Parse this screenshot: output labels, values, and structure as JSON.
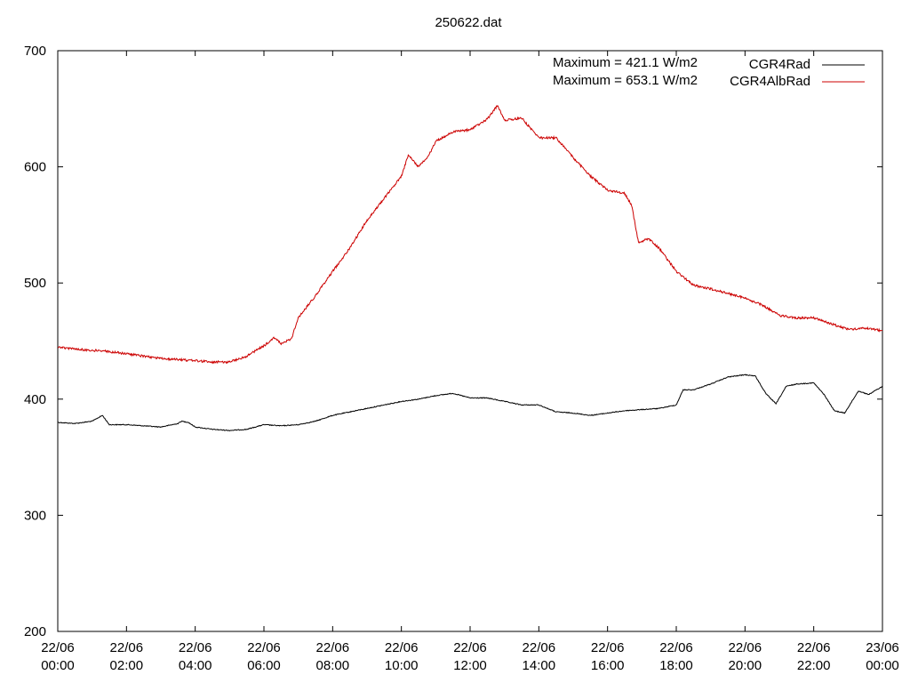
{
  "chart_data": {
    "type": "line",
    "title": "250622.dat",
    "xlabel": "",
    "ylabel": "",
    "ylim": [
      200,
      700
    ],
    "yticks": [
      200,
      300,
      400,
      500,
      600,
      700
    ],
    "xlim": [
      0,
      24
    ],
    "xticks": [
      {
        "x": 0,
        "label": [
          "22/06",
          "00:00"
        ]
      },
      {
        "x": 2,
        "label": [
          "22/06",
          "02:00"
        ]
      },
      {
        "x": 4,
        "label": [
          "22/06",
          "04:00"
        ]
      },
      {
        "x": 6,
        "label": [
          "22/06",
          "06:00"
        ]
      },
      {
        "x": 8,
        "label": [
          "22/06",
          "08:00"
        ]
      },
      {
        "x": 10,
        "label": [
          "22/06",
          "10:00"
        ]
      },
      {
        "x": 12,
        "label": [
          "22/06",
          "12:00"
        ]
      },
      {
        "x": 14,
        "label": [
          "22/06",
          "14:00"
        ]
      },
      {
        "x": 16,
        "label": [
          "22/06",
          "16:00"
        ]
      },
      {
        "x": 18,
        "label": [
          "22/06",
          "18:00"
        ]
      },
      {
        "x": 20,
        "label": [
          "22/06",
          "20:00"
        ]
      },
      {
        "x": 22,
        "label": [
          "22/06",
          "22:00"
        ]
      },
      {
        "x": 24,
        "label": [
          "23/06",
          "00:00"
        ]
      }
    ],
    "annotations": [
      "Maximum = 421.1 W/m2",
      "Maximum = 653.1 W/m2"
    ],
    "legend_position": "top-right",
    "grid": false,
    "series": [
      {
        "name": "CGR4Rad",
        "color": "#000000",
        "points": [
          [
            0,
            380
          ],
          [
            0.5,
            379
          ],
          [
            1,
            381
          ],
          [
            1.3,
            386
          ],
          [
            1.5,
            378
          ],
          [
            2,
            378
          ],
          [
            2.5,
            377
          ],
          [
            3,
            376
          ],
          [
            3.5,
            379
          ],
          [
            3.6,
            381
          ],
          [
            3.8,
            380
          ],
          [
            4,
            376
          ],
          [
            4.5,
            374
          ],
          [
            5,
            373
          ],
          [
            5.5,
            374
          ],
          [
            6,
            378
          ],
          [
            6.5,
            377
          ],
          [
            7,
            378
          ],
          [
            7.5,
            381
          ],
          [
            8,
            386
          ],
          [
            8.5,
            389
          ],
          [
            9,
            392
          ],
          [
            9.5,
            395
          ],
          [
            10,
            398
          ],
          [
            10.5,
            400
          ],
          [
            11,
            403
          ],
          [
            11.5,
            405
          ],
          [
            12,
            401
          ],
          [
            12.5,
            401
          ],
          [
            13,
            398
          ],
          [
            13.5,
            395
          ],
          [
            14,
            395
          ],
          [
            14.5,
            389
          ],
          [
            15,
            388
          ],
          [
            15.5,
            386
          ],
          [
            16,
            388
          ],
          [
            16.5,
            390
          ],
          [
            17,
            391
          ],
          [
            17.5,
            392
          ],
          [
            18,
            395
          ],
          [
            18.2,
            408
          ],
          [
            18.5,
            408
          ],
          [
            19,
            413
          ],
          [
            19.5,
            419
          ],
          [
            20,
            421
          ],
          [
            20.3,
            420
          ],
          [
            20.6,
            405
          ],
          [
            20.9,
            396
          ],
          [
            21.2,
            411
          ],
          [
            21.5,
            413
          ],
          [
            22,
            414
          ],
          [
            22.3,
            404
          ],
          [
            22.6,
            390
          ],
          [
            22.9,
            388
          ],
          [
            23.3,
            407
          ],
          [
            23.6,
            404
          ],
          [
            24,
            411
          ]
        ]
      },
      {
        "name": "CGR4AlbRad",
        "color": "#cc0000",
        "points": [
          [
            0,
            445
          ],
          [
            0.5,
            443
          ],
          [
            1,
            442
          ],
          [
            1.5,
            441
          ],
          [
            2,
            439
          ],
          [
            2.5,
            437
          ],
          [
            3,
            435
          ],
          [
            3.5,
            434
          ],
          [
            4,
            433
          ],
          [
            4.5,
            432
          ],
          [
            5,
            432
          ],
          [
            5.5,
            437
          ],
          [
            6,
            446
          ],
          [
            6.3,
            453
          ],
          [
            6.5,
            448
          ],
          [
            6.8,
            452
          ],
          [
            7,
            470
          ],
          [
            7.5,
            489
          ],
          [
            8,
            510
          ],
          [
            8.5,
            530
          ],
          [
            9,
            554
          ],
          [
            9.5,
            573
          ],
          [
            10,
            592
          ],
          [
            10.2,
            610
          ],
          [
            10.5,
            600
          ],
          [
            10.8,
            610
          ],
          [
            11,
            622
          ],
          [
            11.5,
            630
          ],
          [
            12,
            632
          ],
          [
            12.5,
            641
          ],
          [
            12.8,
            653
          ],
          [
            13,
            640
          ],
          [
            13.5,
            642
          ],
          [
            14,
            625
          ],
          [
            14.5,
            625
          ],
          [
            15,
            608
          ],
          [
            15.5,
            592
          ],
          [
            16,
            580
          ],
          [
            16.5,
            577
          ],
          [
            16.7,
            567
          ],
          [
            16.9,
            535
          ],
          [
            17.2,
            538
          ],
          [
            17.5,
            530
          ],
          [
            18,
            510
          ],
          [
            18.5,
            498
          ],
          [
            19,
            495
          ],
          [
            19.5,
            491
          ],
          [
            20,
            487
          ],
          [
            20.5,
            481
          ],
          [
            21,
            472
          ],
          [
            21.5,
            470
          ],
          [
            22,
            470
          ],
          [
            22.5,
            465
          ],
          [
            23,
            460
          ],
          [
            23.5,
            461
          ],
          [
            24,
            459
          ]
        ]
      }
    ]
  }
}
